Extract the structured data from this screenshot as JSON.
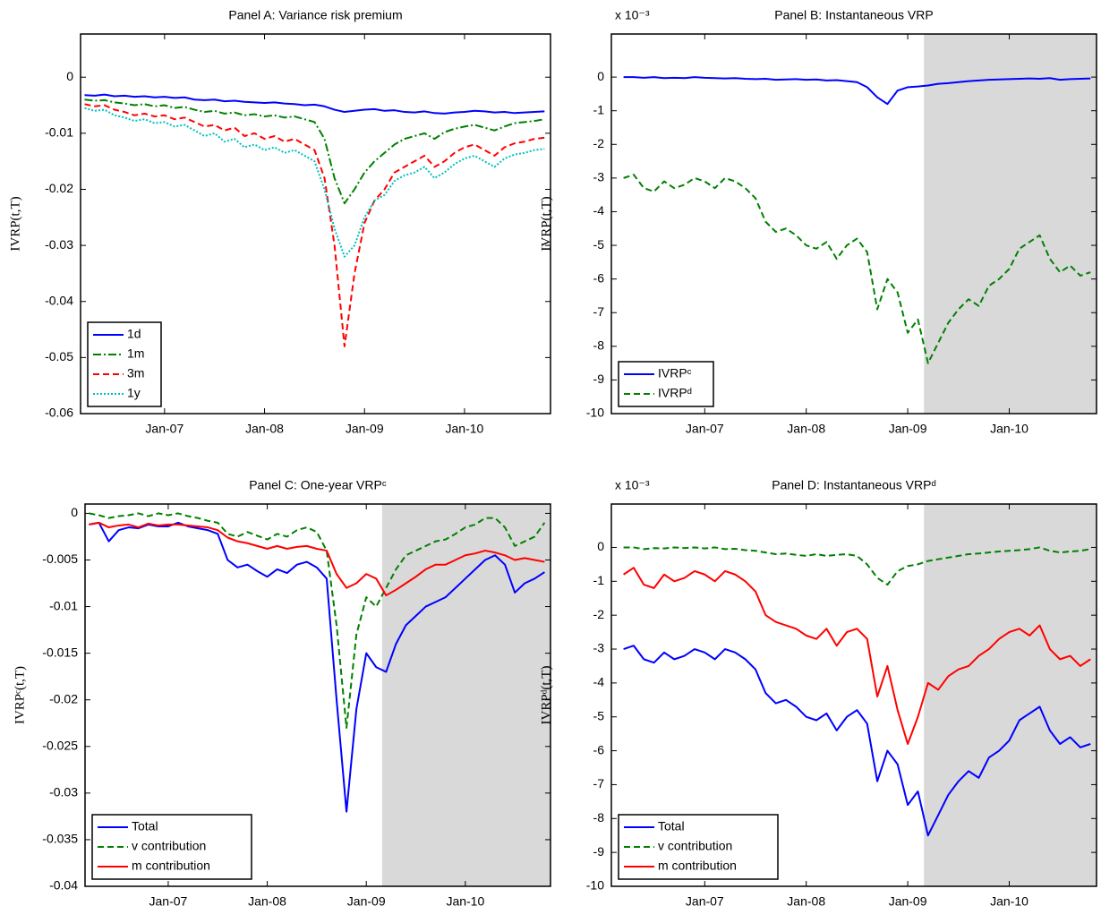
{
  "chart_data": [
    {
      "type": "line",
      "title": "Panel A: Variance risk premium",
      "y_label": "IVRP(t,T)",
      "legend": "lower left",
      "x": [
        2006.2,
        2006.3,
        2006.4,
        2006.5,
        2006.6,
        2006.7,
        2006.8,
        2006.9,
        2007.0,
        2007.1,
        2007.2,
        2007.3,
        2007.4,
        2007.5,
        2007.6,
        2007.7,
        2007.8,
        2007.9,
        2008.0,
        2008.1,
        2008.2,
        2008.3,
        2008.4,
        2008.5,
        2008.6,
        2008.7,
        2008.8,
        2008.9,
        2009.0,
        2009.1,
        2009.2,
        2009.3,
        2009.4,
        2009.5,
        2009.6,
        2009.7,
        2009.8,
        2009.9,
        2010.0,
        2010.1,
        2010.2,
        2010.3,
        2010.4,
        2010.5,
        2010.6,
        2010.7,
        2010.8
      ],
      "xlim": [
        2006.16,
        2010.86
      ],
      "xticks": [
        {
          "value": 2007,
          "label": "Jan-07"
        },
        {
          "value": 2008,
          "label": "Jan-08"
        },
        {
          "value": 2009,
          "label": "Jan-09"
        },
        {
          "value": 2010,
          "label": "Jan-10"
        }
      ],
      "ylim": [
        -0.06,
        0.0077
      ],
      "yticks": [
        0,
        -0.01,
        -0.02,
        -0.03,
        -0.04,
        -0.05,
        -0.06
      ],
      "series": [
        {
          "name": "1d",
          "color": "#0000ff",
          "dash": "solid",
          "values": [
            -0.0032,
            -0.0033,
            -0.0031,
            -0.0034,
            -0.0033,
            -0.0035,
            -0.0034,
            -0.0036,
            -0.0035,
            -0.0037,
            -0.0036,
            -0.004,
            -0.0041,
            -0.004,
            -0.0043,
            -0.0042,
            -0.0044,
            -0.0045,
            -0.0046,
            -0.0045,
            -0.0047,
            -0.0048,
            -0.005,
            -0.0049,
            -0.0052,
            -0.0058,
            -0.0062,
            -0.006,
            -0.0058,
            -0.0057,
            -0.006,
            -0.0059,
            -0.0062,
            -0.0063,
            -0.0061,
            -0.0064,
            -0.0065,
            -0.0063,
            -0.0062,
            -0.006,
            -0.0061,
            -0.0063,
            -0.0062,
            -0.0064,
            -0.0063,
            -0.0062,
            -0.0061
          ]
        },
        {
          "name": "1m",
          "color": "#008000",
          "dash": "dashdot",
          "values": [
            -0.004,
            -0.0042,
            -0.0041,
            -0.0045,
            -0.0047,
            -0.005,
            -0.0048,
            -0.0052,
            -0.005,
            -0.0055,
            -0.0053,
            -0.0058,
            -0.0062,
            -0.006,
            -0.0065,
            -0.0063,
            -0.0068,
            -0.0066,
            -0.007,
            -0.0068,
            -0.0072,
            -0.007,
            -0.0075,
            -0.008,
            -0.011,
            -0.018,
            -0.0225,
            -0.02,
            -0.017,
            -0.015,
            -0.0135,
            -0.012,
            -0.011,
            -0.0105,
            -0.01,
            -0.011,
            -0.0098,
            -0.0092,
            -0.0088,
            -0.0085,
            -0.009,
            -0.0095,
            -0.0088,
            -0.0082,
            -0.008,
            -0.0078,
            -0.0075
          ]
        },
        {
          "name": "3m",
          "color": "#ff0000",
          "dash": "dashed",
          "values": [
            -0.0048,
            -0.0052,
            -0.005,
            -0.0058,
            -0.0062,
            -0.0068,
            -0.0065,
            -0.007,
            -0.0068,
            -0.0075,
            -0.0072,
            -0.008,
            -0.0088,
            -0.0085,
            -0.0095,
            -0.009,
            -0.0105,
            -0.01,
            -0.011,
            -0.0105,
            -0.0115,
            -0.011,
            -0.012,
            -0.013,
            -0.018,
            -0.03,
            -0.048,
            -0.035,
            -0.026,
            -0.022,
            -0.02,
            -0.017,
            -0.016,
            -0.015,
            -0.014,
            -0.016,
            -0.015,
            -0.0135,
            -0.0125,
            -0.012,
            -0.013,
            -0.014,
            -0.0125,
            -0.0118,
            -0.0115,
            -0.011,
            -0.0108
          ]
        },
        {
          "name": "1y",
          "color": "#00bfbf",
          "dash": "dotted",
          "values": [
            -0.0055,
            -0.006,
            -0.0058,
            -0.0068,
            -0.0072,
            -0.0078,
            -0.0075,
            -0.0082,
            -0.008,
            -0.0088,
            -0.0085,
            -0.0095,
            -0.0105,
            -0.01,
            -0.0115,
            -0.011,
            -0.0125,
            -0.012,
            -0.013,
            -0.0125,
            -0.0135,
            -0.013,
            -0.014,
            -0.015,
            -0.02,
            -0.027,
            -0.032,
            -0.03,
            -0.025,
            -0.022,
            -0.021,
            -0.0185,
            -0.0175,
            -0.017,
            -0.016,
            -0.018,
            -0.017,
            -0.0155,
            -0.0145,
            -0.014,
            -0.015,
            -0.016,
            -0.0145,
            -0.0138,
            -0.0135,
            -0.013,
            -0.0128
          ]
        }
      ]
    },
    {
      "type": "line",
      "title": "Panel B: Instantaneous VRP",
      "y_label": "IVRP(t,T)",
      "y_multiplier": "x 10⁻³",
      "legend": "lower left",
      "shaded_xrange": [
        2009.16,
        2010.86
      ],
      "x": [
        2006.2,
        2006.3,
        2006.4,
        2006.5,
        2006.6,
        2006.7,
        2006.8,
        2006.9,
        2007.0,
        2007.1,
        2007.2,
        2007.3,
        2007.4,
        2007.5,
        2007.6,
        2007.7,
        2007.8,
        2007.9,
        2008.0,
        2008.1,
        2008.2,
        2008.3,
        2008.4,
        2008.5,
        2008.6,
        2008.7,
        2008.8,
        2008.9,
        2009.0,
        2009.1,
        2009.2,
        2009.3,
        2009.4,
        2009.5,
        2009.6,
        2009.7,
        2009.8,
        2009.9,
        2010.0,
        2010.1,
        2010.2,
        2010.3,
        2010.4,
        2010.5,
        2010.6,
        2010.7,
        2010.8
      ],
      "xlim": [
        2006.08,
        2010.86
      ],
      "xticks": [
        {
          "value": 2007,
          "label": "Jan-07"
        },
        {
          "value": 2008,
          "label": "Jan-08"
        },
        {
          "value": 2009,
          "label": "Jan-09"
        },
        {
          "value": 2010,
          "label": "Jan-10"
        }
      ],
      "ylim": [
        -10,
        1.28
      ],
      "yticks": [
        0,
        -1,
        -2,
        -3,
        -4,
        -5,
        -6,
        -7,
        -8,
        -9,
        -10
      ],
      "series": [
        {
          "name": "IVRPᶜ",
          "color": "#0000ff",
          "dash": "solid",
          "values": [
            0,
            0,
            -0.02,
            0,
            -0.03,
            -0.02,
            -0.03,
            0,
            -0.02,
            -0.03,
            -0.04,
            -0.03,
            -0.05,
            -0.06,
            -0.05,
            -0.08,
            -0.07,
            -0.06,
            -0.08,
            -0.07,
            -0.1,
            -0.09,
            -0.12,
            -0.15,
            -0.3,
            -0.6,
            -0.8,
            -0.4,
            -0.3,
            -0.28,
            -0.25,
            -0.2,
            -0.18,
            -0.15,
            -0.12,
            -0.1,
            -0.08,
            -0.07,
            -0.06,
            -0.05,
            -0.04,
            -0.05,
            -0.03,
            -0.08,
            -0.06,
            -0.05,
            -0.04
          ]
        },
        {
          "name": "IVRPᵈ",
          "color": "#008000",
          "dash": "dashed",
          "values": [
            -3.0,
            -2.9,
            -3.3,
            -3.4,
            -3.1,
            -3.3,
            -3.2,
            -3.0,
            -3.1,
            -3.3,
            -3.0,
            -3.1,
            -3.3,
            -3.6,
            -4.3,
            -4.6,
            -4.5,
            -4.7,
            -5.0,
            -5.1,
            -4.9,
            -5.4,
            -5.0,
            -4.8,
            -5.2,
            -6.9,
            -6.0,
            -6.4,
            -7.6,
            -7.2,
            -8.5,
            -7.9,
            -7.3,
            -6.9,
            -6.6,
            -6.8,
            -6.2,
            -6.0,
            -5.7,
            -5.1,
            -4.9,
            -4.7,
            -5.4,
            -5.8,
            -5.6,
            -5.9,
            -5.8
          ]
        }
      ]
    },
    {
      "type": "line",
      "title": "Panel C: One-year VRPᶜ",
      "y_label": "IVRPᶜ(t,T)",
      "legend": "lower left",
      "shaded_xrange": [
        2009.16,
        2010.86
      ],
      "x": [
        2006.2,
        2006.3,
        2006.4,
        2006.5,
        2006.6,
        2006.7,
        2006.8,
        2006.9,
        2007.0,
        2007.1,
        2007.2,
        2007.3,
        2007.4,
        2007.5,
        2007.6,
        2007.7,
        2007.8,
        2007.9,
        2008.0,
        2008.1,
        2008.2,
        2008.3,
        2008.4,
        2008.5,
        2008.6,
        2008.7,
        2008.8,
        2008.9,
        2009.0,
        2009.1,
        2009.2,
        2009.3,
        2009.4,
        2009.5,
        2009.6,
        2009.7,
        2009.8,
        2009.9,
        2010.0,
        2010.1,
        2010.2,
        2010.3,
        2010.4,
        2010.5,
        2010.6,
        2010.7,
        2010.8
      ],
      "xlim": [
        2006.16,
        2010.86
      ],
      "xticks": [
        {
          "value": 2007,
          "label": "Jan-07"
        },
        {
          "value": 2008,
          "label": "Jan-08"
        },
        {
          "value": 2009,
          "label": "Jan-09"
        },
        {
          "value": 2010,
          "label": "Jan-10"
        }
      ],
      "ylim": [
        -0.04,
        0.001
      ],
      "yticks": [
        0,
        -0.005,
        -0.01,
        -0.015,
        -0.02,
        -0.025,
        -0.03,
        -0.035,
        -0.04
      ],
      "series": [
        {
          "name": "Total",
          "color": "#0000ff",
          "dash": "solid",
          "values": [
            -0.0012,
            -0.001,
            -0.003,
            -0.0018,
            -0.0015,
            -0.0016,
            -0.0012,
            -0.0014,
            -0.0014,
            -0.001,
            -0.0014,
            -0.0016,
            -0.0018,
            -0.0022,
            -0.005,
            -0.0058,
            -0.0055,
            -0.0062,
            -0.0068,
            -0.006,
            -0.0064,
            -0.0055,
            -0.0052,
            -0.0058,
            -0.007,
            -0.02,
            -0.032,
            -0.021,
            -0.015,
            -0.0165,
            -0.017,
            -0.014,
            -0.012,
            -0.011,
            -0.01,
            -0.0095,
            -0.009,
            -0.008,
            -0.007,
            -0.006,
            -0.005,
            -0.0045,
            -0.0055,
            -0.0085,
            -0.0075,
            -0.007,
            -0.0063
          ]
        },
        {
          "name": "v contribution",
          "color": "#008000",
          "dash": "dashed",
          "values": [
            0,
            -0.0002,
            -0.0005,
            -0.0003,
            -0.0002,
            0,
            -0.0003,
            0,
            -0.0002,
            0,
            -0.0003,
            -0.0005,
            -0.0008,
            -0.001,
            -0.0022,
            -0.0025,
            -0.002,
            -0.0024,
            -0.0028,
            -0.0022,
            -0.0025,
            -0.0018,
            -0.0015,
            -0.002,
            -0.004,
            -0.012,
            -0.023,
            -0.013,
            -0.009,
            -0.01,
            -0.008,
            -0.006,
            -0.0045,
            -0.004,
            -0.0035,
            -0.003,
            -0.0028,
            -0.0022,
            -0.0015,
            -0.0012,
            -0.0005,
            -0.0005,
            -0.0015,
            -0.0035,
            -0.003,
            -0.0025,
            -0.001
          ]
        },
        {
          "name": "m contribution",
          "color": "#ff0000",
          "dash": "solid",
          "values": [
            -0.0012,
            -0.001,
            -0.0015,
            -0.0013,
            -0.0012,
            -0.0015,
            -0.0011,
            -0.0013,
            -0.0012,
            -0.0012,
            -0.0013,
            -0.0014,
            -0.0015,
            -0.0018,
            -0.0026,
            -0.003,
            -0.0032,
            -0.0035,
            -0.0038,
            -0.0035,
            -0.0038,
            -0.0036,
            -0.0035,
            -0.0038,
            -0.004,
            -0.0065,
            -0.008,
            -0.0075,
            -0.0065,
            -0.007,
            -0.0088,
            -0.0082,
            -0.0075,
            -0.0068,
            -0.006,
            -0.0055,
            -0.0055,
            -0.005,
            -0.0045,
            -0.0043,
            -0.004,
            -0.0042,
            -0.0045,
            -0.005,
            -0.0048,
            -0.005,
            -0.0052
          ]
        }
      ]
    },
    {
      "type": "line",
      "title": "Panel D: Instantaneous VRPᵈ",
      "y_label": "IVRPᵈ(t,T)",
      "y_multiplier": "x 10⁻³",
      "legend": "lower left",
      "shaded_xrange": [
        2009.16,
        2010.86
      ],
      "x": [
        2006.2,
        2006.3,
        2006.4,
        2006.5,
        2006.6,
        2006.7,
        2006.8,
        2006.9,
        2007.0,
        2007.1,
        2007.2,
        2007.3,
        2007.4,
        2007.5,
        2007.6,
        2007.7,
        2007.8,
        2007.9,
        2008.0,
        2008.1,
        2008.2,
        2008.3,
        2008.4,
        2008.5,
        2008.6,
        2008.7,
        2008.8,
        2008.9,
        2009.0,
        2009.1,
        2009.2,
        2009.3,
        2009.4,
        2009.5,
        2009.6,
        2009.7,
        2009.8,
        2009.9,
        2010.0,
        2010.1,
        2010.2,
        2010.3,
        2010.4,
        2010.5,
        2010.6,
        2010.7,
        2010.8
      ],
      "xlim": [
        2006.08,
        2010.86
      ],
      "xticks": [
        {
          "value": 2007,
          "label": "Jan-07"
        },
        {
          "value": 2008,
          "label": "Jan-08"
        },
        {
          "value": 2009,
          "label": "Jan-09"
        },
        {
          "value": 2010,
          "label": "Jan-10"
        }
      ],
      "ylim": [
        -10,
        1.28
      ],
      "yticks": [
        0,
        -1,
        -2,
        -3,
        -4,
        -5,
        -6,
        -7,
        -8,
        -9,
        -10
      ],
      "series": [
        {
          "name": "Total",
          "color": "#0000ff",
          "dash": "solid",
          "values": [
            -3.0,
            -2.9,
            -3.3,
            -3.4,
            -3.1,
            -3.3,
            -3.2,
            -3.0,
            -3.1,
            -3.3,
            -3.0,
            -3.1,
            -3.3,
            -3.6,
            -4.3,
            -4.6,
            -4.5,
            -4.7,
            -5.0,
            -5.1,
            -4.9,
            -5.4,
            -5.0,
            -4.8,
            -5.2,
            -6.9,
            -6.0,
            -6.4,
            -7.6,
            -7.2,
            -8.5,
            -7.9,
            -7.3,
            -6.9,
            -6.6,
            -6.8,
            -6.2,
            -6.0,
            -5.7,
            -5.1,
            -4.9,
            -4.7,
            -5.4,
            -5.8,
            -5.6,
            -5.9,
            -5.8
          ]
        },
        {
          "name": "v contribution",
          "color": "#008000",
          "dash": "dashed",
          "values": [
            0,
            0,
            -0.05,
            -0.02,
            -0.03,
            0,
            -0.02,
            0,
            -0.03,
            0,
            -0.05,
            -0.04,
            -0.08,
            -0.1,
            -0.15,
            -0.2,
            -0.18,
            -0.22,
            -0.25,
            -0.2,
            -0.25,
            -0.22,
            -0.2,
            -0.25,
            -0.5,
            -0.9,
            -1.1,
            -0.7,
            -0.55,
            -0.5,
            -0.4,
            -0.35,
            -0.3,
            -0.25,
            -0.2,
            -0.18,
            -0.15,
            -0.12,
            -0.1,
            -0.08,
            -0.05,
            0,
            -0.1,
            -0.15,
            -0.12,
            -0.1,
            -0.05
          ]
        },
        {
          "name": "m contribution",
          "color": "#ff0000",
          "dash": "solid",
          "values": [
            -0.8,
            -0.6,
            -1.1,
            -1.2,
            -0.8,
            -1.0,
            -0.9,
            -0.7,
            -0.8,
            -1.0,
            -0.7,
            -0.8,
            -1.0,
            -1.3,
            -2.0,
            -2.2,
            -2.3,
            -2.4,
            -2.6,
            -2.7,
            -2.4,
            -2.9,
            -2.5,
            -2.4,
            -2.7,
            -4.4,
            -3.5,
            -4.8,
            -5.8,
            -5.0,
            -4.0,
            -4.2,
            -3.8,
            -3.6,
            -3.5,
            -3.2,
            -3.0,
            -2.7,
            -2.5,
            -2.4,
            -2.6,
            -2.3,
            -3.0,
            -3.3,
            -3.2,
            -3.5,
            -3.3
          ]
        }
      ]
    }
  ]
}
